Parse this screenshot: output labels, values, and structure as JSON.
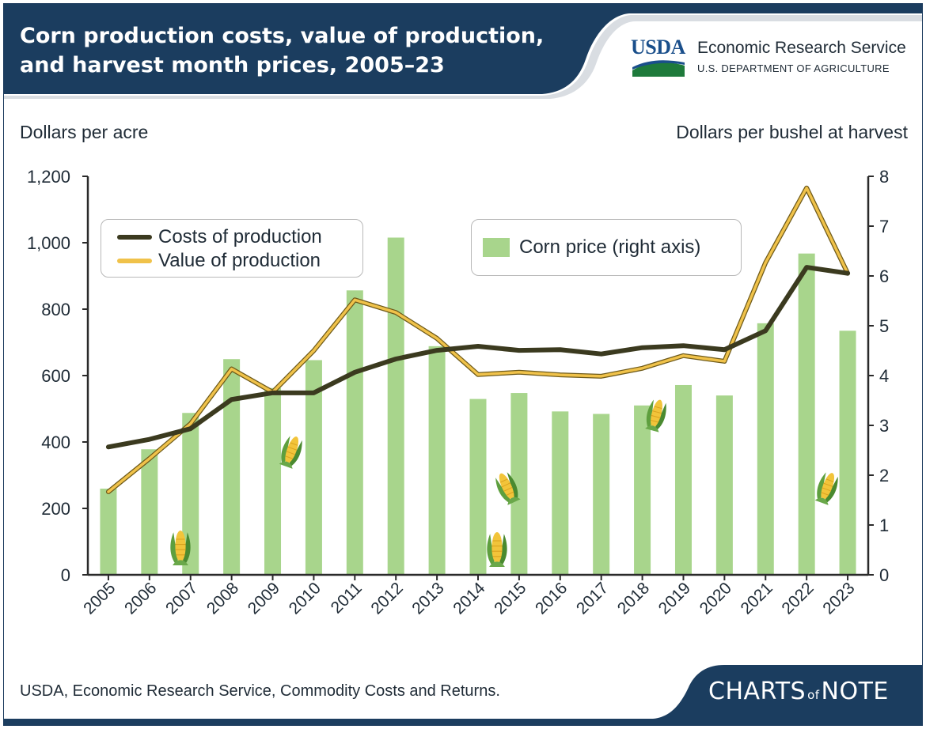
{
  "header": {
    "title_line1": "Corn production costs, value of production,",
    "title_line2": "and harvest month prices, 2005–23",
    "logo_mark": "USDA",
    "agency_name": "Economic Research Service",
    "department": "U.S. DEPARTMENT OF AGRICULTURE",
    "band_color": "#1b3d5f"
  },
  "footer": {
    "source": "USDA, Economic Research Service, Commodity Costs and Returns.",
    "brand_left": "CHARTS",
    "brand_of": "of",
    "brand_right": "NOTE"
  },
  "chart_data": {
    "type": "bar",
    "ylabel_left": "Dollars per acre",
    "ylabel_right": "Dollars per bushel at harvest",
    "categories": [
      "2005",
      "2006",
      "2007",
      "2008",
      "2009",
      "2010",
      "2011",
      "2012",
      "2013",
      "2014",
      "2015",
      "2016",
      "2017",
      "2018",
      "2019",
      "2020",
      "2021",
      "2022",
      "2023"
    ],
    "ylim_left": [
      0,
      1200
    ],
    "yticks_left": [
      "0",
      "200",
      "400",
      "600",
      "800",
      "1,000",
      "1,200"
    ],
    "ylim_right": [
      0,
      8
    ],
    "yticks_right": [
      "0",
      "1",
      "2",
      "3",
      "4",
      "5",
      "6",
      "7",
      "8"
    ],
    "grid": false,
    "series": [
      {
        "name": "Corn price (right axis)",
        "type": "bar",
        "axis": "right",
        "color": "#a8d58c",
        "values": [
          1.73,
          2.52,
          3.25,
          4.33,
          3.75,
          4.31,
          5.71,
          6.77,
          4.59,
          3.53,
          3.65,
          3.28,
          3.23,
          3.4,
          3.81,
          3.6,
          5.05,
          6.45,
          4.9
        ]
      },
      {
        "name": "Costs of production",
        "type": "line",
        "axis": "left",
        "color": "#3b3a1f",
        "values": [
          385,
          408,
          440,
          528,
          548,
          548,
          610,
          650,
          676,
          688,
          676,
          678,
          665,
          684,
          690,
          678,
          735,
          926,
          908
        ]
      },
      {
        "name": "Value of production",
        "type": "line",
        "axis": "left",
        "color": "#f0c24a",
        "values": [
          250,
          350,
          455,
          620,
          550,
          675,
          828,
          790,
          712,
          603,
          610,
          602,
          598,
          622,
          660,
          643,
          940,
          1165,
          908
        ]
      }
    ],
    "legend": {
      "lines_placement": "upper-left",
      "bars_placement": "upper-center"
    }
  }
}
